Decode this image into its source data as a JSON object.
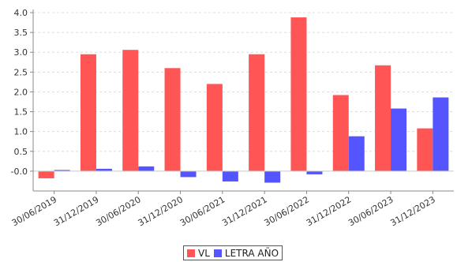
{
  "chart_data": {
    "type": "bar",
    "title": "",
    "xlabel": "",
    "ylabel": "",
    "categories": [
      "30/06/2019",
      "31/12/2019",
      "30/06/2020",
      "31/12/2020",
      "30/06/2021",
      "31/12/2021",
      "30/06/2022",
      "31/12/2022",
      "30/06/2023",
      "31/12/2023"
    ],
    "series": [
      {
        "name": "VL",
        "color": "#ff5555",
        "values": [
          -0.18,
          2.95,
          3.06,
          2.6,
          2.2,
          2.95,
          3.88,
          1.92,
          2.67,
          1.08
        ]
      },
      {
        "name": "LETRA AÑO",
        "color": "#5555ff",
        "values": [
          0.03,
          0.06,
          0.12,
          -0.15,
          -0.26,
          -0.29,
          -0.08,
          0.88,
          1.58,
          1.86
        ]
      }
    ],
    "ylim": [
      -0.5,
      4.0
    ],
    "yticks": [
      "-0.0",
      "0.5",
      "1.0",
      "1.5",
      "2.0",
      "2.5",
      "3.0",
      "3.5",
      "4.0"
    ],
    "ytick_values": [
      0.0,
      0.5,
      1.0,
      1.5,
      2.0,
      2.5,
      3.0,
      3.5,
      4.0
    ],
    "grid": true,
    "legend_position": "bottom-center"
  }
}
